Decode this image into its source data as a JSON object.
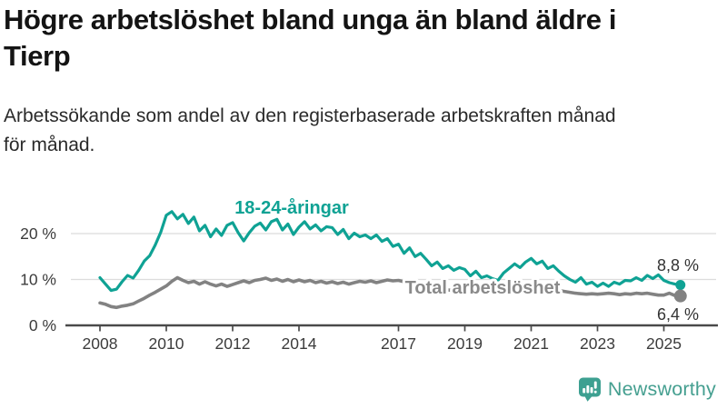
{
  "title": {
    "line1": "Högre arbetslöshet bland unga än bland äldre i",
    "line2": "Tierp"
  },
  "subtitle": {
    "line1": "Arbetssökande som andel av den registerbaserade arbetskraften månad",
    "line2": "för månad."
  },
  "chart_data": {
    "type": "line",
    "unit": "%",
    "x_start_year": 2008,
    "points_per_year": 6,
    "x_end": 2025.5,
    "grid": "horizontal",
    "x_axis": {
      "tick_years": [
        2008,
        2010,
        2012,
        2014,
        2017,
        2019,
        2021,
        2023,
        2025
      ]
    },
    "y_axis": {
      "ticks": [
        {
          "value": 0,
          "label": "0 %"
        },
        {
          "value": 10,
          "label": "10 %"
        },
        {
          "value": 20,
          "label": "20 %"
        }
      ],
      "range": [
        0,
        26
      ]
    },
    "series": [
      {
        "name": "18-24-aringar",
        "label": "18-24-åringar",
        "color": "#0fa294",
        "line_width": 3.2,
        "marker_radius": 5.5,
        "end_label": "8,8 %",
        "end_value": 8.8,
        "values": [
          10.4,
          9.0,
          7.6,
          7.9,
          9.5,
          10.9,
          10.3,
          12.0,
          14.0,
          15.2,
          17.5,
          20.3,
          24.0,
          24.8,
          23.2,
          24.2,
          22.2,
          23.6,
          20.6,
          21.8,
          19.3,
          21.0,
          19.6,
          21.8,
          22.4,
          20.2,
          18.4,
          20.2,
          21.6,
          22.3,
          20.8,
          22.6,
          23.1,
          20.8,
          22.1,
          19.8,
          21.4,
          22.6,
          21.0,
          21.9,
          20.6,
          21.5,
          21.3,
          19.8,
          20.9,
          18.9,
          20.1,
          19.3,
          19.7,
          18.9,
          19.7,
          18.3,
          18.9,
          17.2,
          17.7,
          15.7,
          16.9,
          15.0,
          15.7,
          14.4,
          13.0,
          13.8,
          12.4,
          13.0,
          12.0,
          12.6,
          12.2,
          10.8,
          11.8,
          10.4,
          10.8,
          10.2,
          9.8,
          11.4,
          12.4,
          13.4,
          12.6,
          13.8,
          14.6,
          13.4,
          14.0,
          12.4,
          13.0,
          11.8,
          10.8,
          10.0,
          9.4,
          10.4,
          9.0,
          9.4,
          8.5,
          9.2,
          8.5,
          9.4,
          9.0,
          9.8,
          9.7,
          10.4,
          9.8,
          10.9,
          10.2,
          11.0,
          9.8,
          9.3,
          9.0,
          8.8
        ]
      },
      {
        "name": "total-arbetsloshet",
        "label": "Total arbetslöshet",
        "color": "#828282",
        "line_width": 3.6,
        "marker_radius": 7,
        "end_label": "6,4 %",
        "end_value": 6.4,
        "values": [
          4.9,
          4.6,
          4.1,
          3.9,
          4.2,
          4.4,
          4.7,
          5.3,
          5.9,
          6.6,
          7.2,
          7.9,
          8.6,
          9.6,
          10.4,
          9.8,
          9.3,
          9.6,
          9.0,
          9.5,
          9.0,
          8.6,
          9.0,
          8.5,
          8.9,
          9.3,
          9.7,
          9.3,
          9.8,
          10.0,
          10.3,
          9.8,
          10.1,
          9.6,
          10.0,
          9.5,
          9.9,
          9.5,
          9.8,
          9.3,
          9.6,
          9.2,
          9.5,
          9.1,
          9.4,
          9.0,
          9.3,
          9.6,
          9.4,
          9.7,
          9.3,
          9.6,
          9.9,
          9.7,
          9.8,
          9.5,
          9.2,
          8.9,
          8.7,
          8.5,
          8.3,
          8.1,
          7.9,
          7.7,
          7.6,
          7.5,
          7.4,
          7.3,
          7.2,
          7.3,
          7.4,
          7.5,
          7.7,
          8.4,
          9.0,
          9.2,
          9.0,
          8.8,
          8.6,
          8.4,
          8.2,
          8.0,
          7.8,
          7.6,
          7.4,
          7.2,
          7.0,
          6.9,
          6.8,
          6.9,
          6.8,
          6.9,
          7.0,
          6.9,
          6.7,
          6.9,
          6.8,
          7.0,
          6.9,
          7.0,
          6.8,
          6.6,
          6.6,
          7.0,
          6.5,
          6.4
        ]
      }
    ]
  },
  "footer": {
    "brand": "Newsworthy"
  },
  "colors": {
    "accent_teal": "#0fa294",
    "line_gray": "#828282",
    "brand_teal": "#459f90",
    "grid": "#dcdcdc",
    "axis": "#4a4a4a",
    "text_dark": "#141414"
  }
}
